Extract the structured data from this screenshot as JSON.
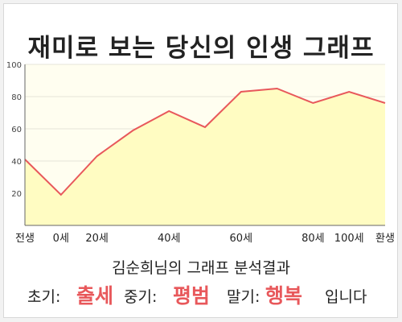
{
  "title": "재미로 보는 당신의 인생 그래프",
  "subtitle": "김순희님의 그래프 분석결과",
  "result": {
    "early_label": "초기:",
    "early_value": "출세",
    "mid_label": "중기:",
    "mid_value": "평범",
    "late_label": "말기:",
    "late_value": "행복",
    "ending": "입니다"
  },
  "colors": {
    "line": "#e8585b",
    "fill": "#fffcc2",
    "highlight": "#e8585b"
  },
  "chart_data": {
    "type": "area",
    "title": "",
    "xlabel": "",
    "ylabel": "",
    "ylim": [
      0,
      100
    ],
    "y_ticks": [
      20,
      40,
      60,
      80,
      100
    ],
    "x_tick_labels": [
      "전생",
      "0세",
      "20세",
      "40세",
      "60세",
      "80세",
      "100세",
      "환생"
    ],
    "grid": true,
    "series": [
      {
        "x": [
          "전생",
          "0세",
          "20세",
          "30세",
          "40세",
          "50세",
          "60세",
          "70세",
          "80세",
          "100세",
          "환생"
        ],
        "values": [
          41,
          19,
          43,
          59,
          71,
          61,
          83,
          85,
          76,
          83,
          76
        ]
      }
    ]
  }
}
